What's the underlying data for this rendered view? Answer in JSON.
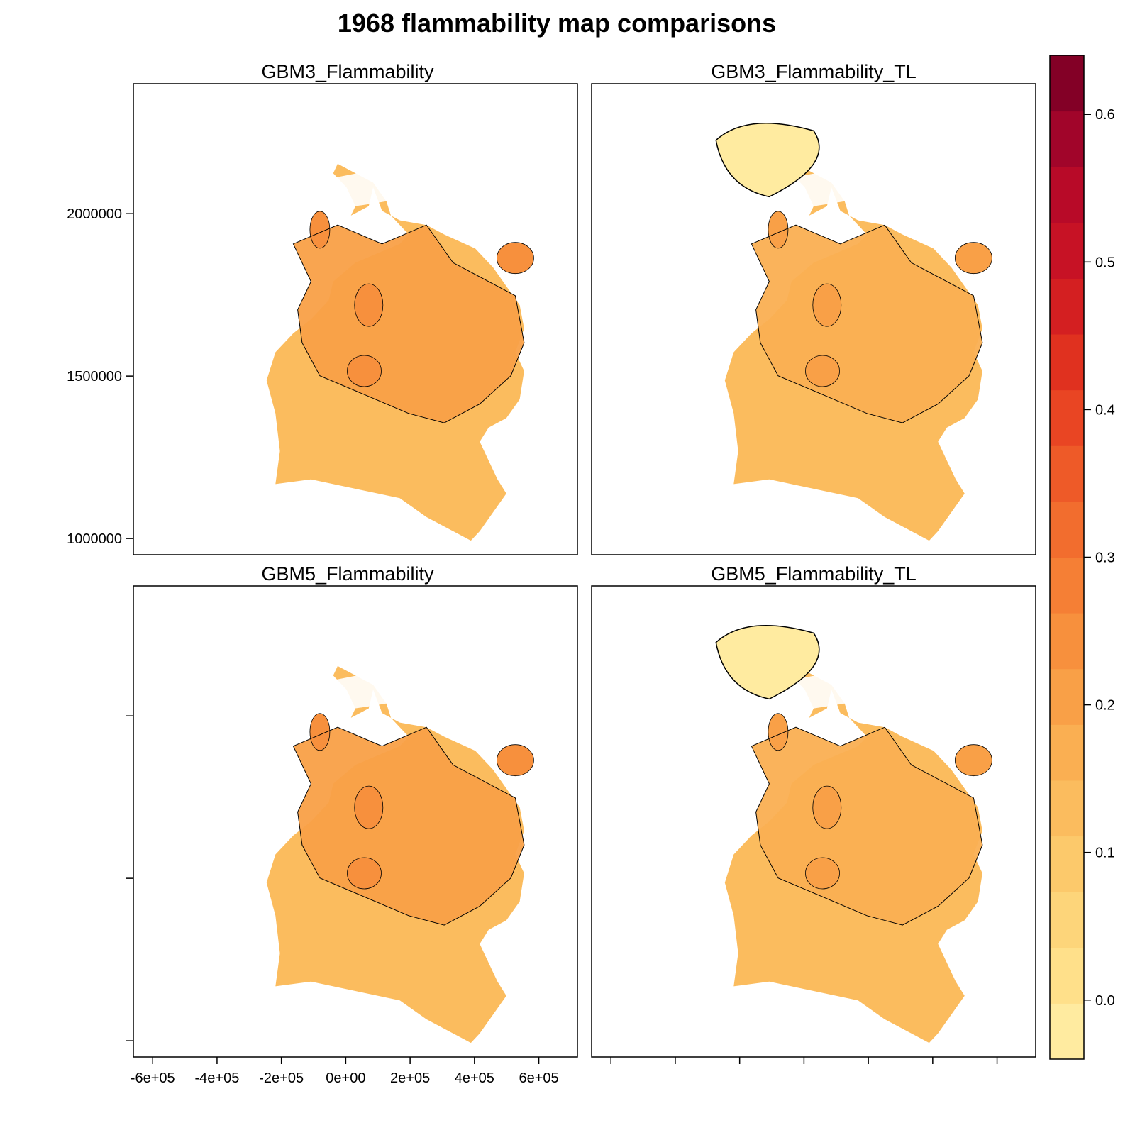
{
  "chart_data": {
    "type": "heatmap",
    "title": "1968 flammability map comparisons",
    "xlabel": "",
    "ylabel": "",
    "xlim": [
      -660000,
      720000
    ],
    "ylim": [
      950000,
      2400000
    ],
    "x_ticks": [
      -600000,
      -400000,
      -200000,
      0,
      200000,
      400000,
      600000
    ],
    "x_tick_labels": [
      "-6e+05",
      "-4e+05",
      "-2e+05",
      "0e+00",
      "2e+05",
      "4e+05",
      "6e+05"
    ],
    "y_ticks": [
      1000000,
      1500000,
      2000000
    ],
    "y_tick_labels": [
      "1000000",
      "1500000",
      "2000000"
    ],
    "panels": [
      {
        "name": "GBM3_Flammability",
        "north_level": 0.13,
        "interior_level": 0.19,
        "hotspot_level": 0.23
      },
      {
        "name": "GBM3_Flammability_TL",
        "north_level": 0.13,
        "interior_level": 0.16,
        "hotspot_level": 0.21
      },
      {
        "name": "GBM5_Flammability",
        "north_level": 0.14,
        "interior_level": 0.19,
        "hotspot_level": 0.23
      },
      {
        "name": "GBM5_Flammability_TL",
        "north_level": 0.13,
        "interior_level": 0.16,
        "hotspot_level": 0.21
      }
    ],
    "colorbar": {
      "min": -0.04,
      "max": 0.64,
      "ticks": [
        0.0,
        0.1,
        0.2,
        0.3,
        0.4,
        0.5,
        0.6
      ],
      "tick_labels": [
        "0.0",
        "0.1",
        "0.2",
        "0.3",
        "0.4",
        "0.5",
        "0.6"
      ],
      "colors": [
        "#FFEBA0",
        "#FFE08A",
        "#FDD57A",
        "#FCC96B",
        "#FBBC5E",
        "#FAAF52",
        "#F9A047",
        "#F7903D",
        "#F57F35",
        "#F26D2E",
        "#EE5A28",
        "#E94523",
        "#E0311F",
        "#D41F21",
        "#C71225",
        "#B80A28",
        "#A1052A",
        "#830026"
      ]
    }
  }
}
